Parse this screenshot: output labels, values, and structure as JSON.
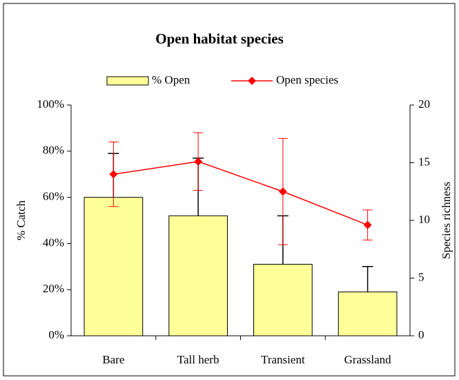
{
  "chart_data": {
    "type": "bar-line",
    "title": "Open habitat species",
    "categories": [
      "Bare",
      "Tall herb",
      "Transient",
      "Grassland"
    ],
    "series": [
      {
        "name": "% Open",
        "type": "bar",
        "color": "#ffff99",
        "values": [
          60,
          52,
          31,
          19
        ],
        "errors": [
          19,
          25,
          21,
          11
        ]
      },
      {
        "name": "Open species",
        "type": "line",
        "axis": "y2",
        "color": "#ff0000",
        "values": [
          14,
          15.1,
          12.5,
          9.6
        ],
        "errors": [
          2.8,
          2.5,
          4.6,
          1.3
        ]
      }
    ],
    "ylabel": "% Catch",
    "y2label": "Species richness",
    "ylim": [
      0,
      100
    ],
    "yticks": [
      {
        "value": 0,
        "label": "0%"
      },
      {
        "value": 20,
        "label": "20%"
      },
      {
        "value": 40,
        "label": "40%"
      },
      {
        "value": 60,
        "label": "60%"
      },
      {
        "value": 80,
        "label": "80%"
      },
      {
        "value": 100,
        "label": "100%"
      }
    ],
    "y2lim": [
      0,
      20
    ],
    "y2ticks": [
      0,
      5,
      10,
      15,
      20
    ],
    "legend": "top"
  }
}
